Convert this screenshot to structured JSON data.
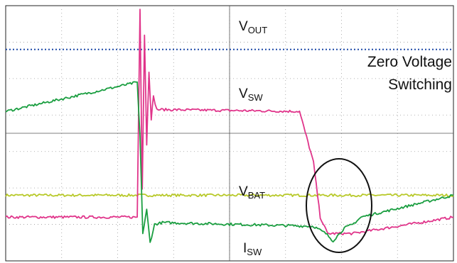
{
  "chart_data": {
    "type": "line",
    "title": "",
    "xlabel": "",
    "ylabel": "",
    "grid": true,
    "divisions": {
      "x": 8,
      "y": 7
    },
    "xlim": [
      0,
      8
    ],
    "ylim": [
      -3.6,
      3.4
    ],
    "annotation": {
      "line1": "Zero Voltage",
      "line2": "Switching"
    },
    "series": [
      {
        "key": "vout",
        "label_main": "V",
        "label_sub": "OUT",
        "color": "#1f4aa8",
        "style": "dotted",
        "x": [
          0,
          8
        ],
        "y": [
          2.2,
          2.2
        ]
      },
      {
        "key": "vbat",
        "label_main": "V",
        "label_sub": "BAT",
        "color": "#b8c92a",
        "style": "solid",
        "x": [
          0,
          8
        ],
        "y": [
          -1.8,
          -1.8
        ]
      },
      {
        "key": "vsw",
        "label_main": "V",
        "label_sub": "SW",
        "color": "#e0348a",
        "style": "solid",
        "x": [
          0,
          2.35,
          2.4,
          2.44,
          2.48,
          2.52,
          2.56,
          2.6,
          2.64,
          2.7,
          2.76,
          5.25,
          5.5,
          5.62,
          5.75,
          6.2,
          8
        ],
        "y": [
          -2.4,
          -2.4,
          3.3,
          -1.6,
          2.6,
          -0.4,
          1.6,
          0.3,
          0.9,
          0.55,
          0.55,
          0.5,
          -0.9,
          -2.4,
          -2.85,
          -2.85,
          -2.4
        ]
      },
      {
        "key": "isw",
        "label_main": "I",
        "label_sub": "SW",
        "color": "#1a9e40",
        "style": "solid",
        "x": [
          0,
          2.35,
          2.4,
          2.45,
          2.52,
          2.58,
          2.66,
          2.8,
          5.5,
          5.72,
          5.85,
          6.05,
          6.2,
          6.35,
          8
        ],
        "y": [
          0.5,
          1.3,
          -0.2,
          -2.85,
          -2.2,
          -3.1,
          -2.6,
          -2.55,
          -2.65,
          -2.85,
          -3.05,
          -2.7,
          -2.6,
          -2.4,
          -1.8
        ]
      }
    ]
  }
}
